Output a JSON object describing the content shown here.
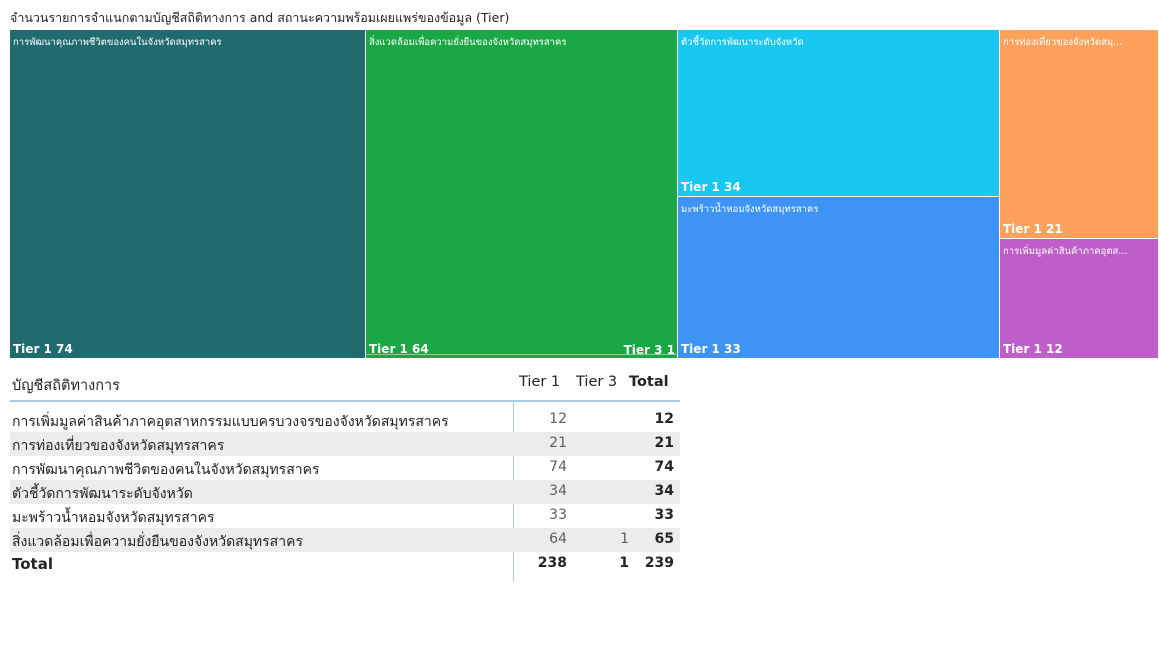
{
  "chart_data": [
    {
      "type": "treemap",
      "title": "จำนวนรายการจำแนกตามบัญชีสถิติทางการ and สถานะความพร้อมเผยแพร่ของข้อมูล (Tier)",
      "nodes": [
        {
          "category": "การพัฒนาคุณภาพชีวิตของคนในจังหวัดสมุทรสาคร",
          "color": "#1f6b6f",
          "children": [
            {
              "label": "Tier 1",
              "value": 74
            }
          ]
        },
        {
          "category": "สิ่งแวดล้อมเพื่อความยั่งยืนของจังหวัดสมุทรสาคร",
          "color": "#1aa845",
          "children": [
            {
              "label": "Tier 1",
              "value": 64
            },
            {
              "label": "Tier 3",
              "value": 1
            }
          ]
        },
        {
          "category": "ตัวชี้วัดการพัฒนาระดับจังหวัด",
          "color": "#19c8f1",
          "children": [
            {
              "label": "Tier 1",
              "value": 34
            }
          ]
        },
        {
          "category": "มะพร้าวน้ำหอมจังหวัดสมุทรสาคร",
          "color": "#3e94f5",
          "children": [
            {
              "label": "Tier 1",
              "value": 33
            }
          ]
        },
        {
          "category": "การท่องเที่ยวของจังหวัดสมุ...",
          "color": "#fea15a",
          "children": [
            {
              "label": "Tier 1",
              "value": 21
            }
          ]
        },
        {
          "category": "การเพิ่มมูลค่าสินค้าภาคอุตส...",
          "color": "#bf5ec9",
          "children": [
            {
              "label": "Tier 1",
              "value": 12
            }
          ]
        }
      ]
    },
    {
      "type": "table",
      "columns": [
        "บัญชีสถิติทางการ",
        "Tier 1",
        "Tier 3",
        "Total"
      ],
      "rows": [
        {
          "name": "การเพิ่มมูลค่าสินค้าภาคอุตสาหกรรมแบบครบวงจรของจังหวัดสมุทรสาคร",
          "t1": "12",
          "t3": "",
          "total": "12"
        },
        {
          "name": "การท่องเที่ยวของจังหวัดสมุทรสาคร",
          "t1": "21",
          "t3": "",
          "total": "21"
        },
        {
          "name": "การพัฒนาคุณภาพชีวิตของคนในจังหวัดสมุทรสาคร",
          "t1": "74",
          "t3": "",
          "total": "74"
        },
        {
          "name": "ตัวชี้วัดการพัฒนาระดับจังหวัด",
          "t1": "34",
          "t3": "",
          "total": "34"
        },
        {
          "name": "มะพร้าวน้ำหอมจังหวัดสมุทรสาคร",
          "t1": "33",
          "t3": "",
          "total": "33"
        },
        {
          "name": "สิ่งแวดล้อมเพื่อความยั่งยืนของจังหวัดสมุทรสาคร",
          "t1": "64",
          "t3": "1",
          "total": "65"
        }
      ],
      "total_row": {
        "name": "Total",
        "t1": "238",
        "t3": "1",
        "total": "239"
      }
    }
  ]
}
